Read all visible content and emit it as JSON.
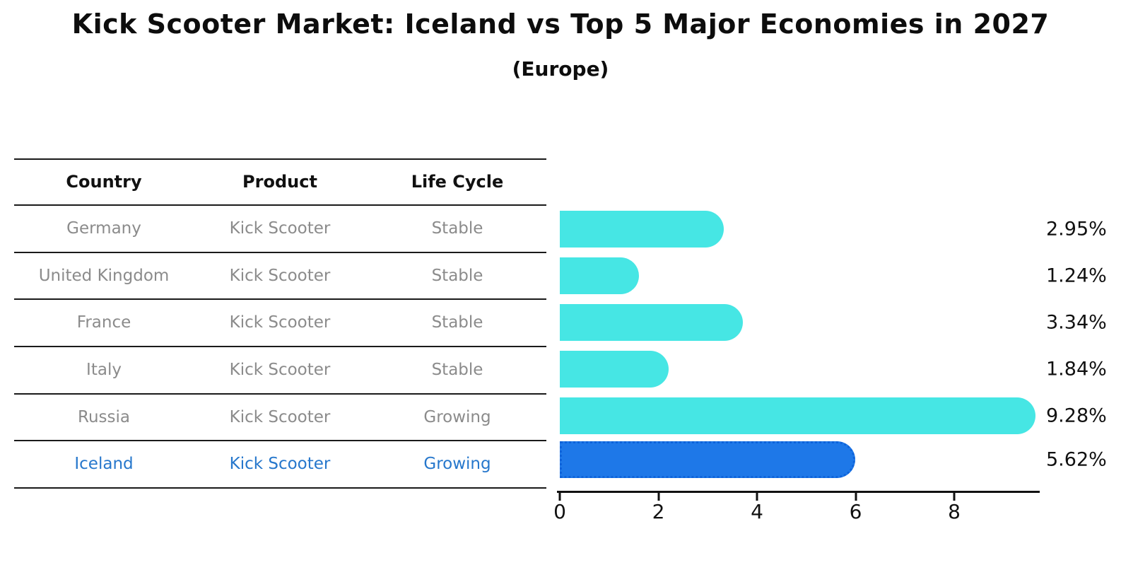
{
  "title": "Kick Scooter Market: Iceland vs Top 5 Major Economies in 2027",
  "subtitle": "(Europe)",
  "table": {
    "columns": [
      "Country",
      "Product",
      "Life Cycle"
    ],
    "rows": [
      {
        "country": "Germany",
        "product": "Kick Scooter",
        "life_cycle": "Stable",
        "highlight": false
      },
      {
        "country": "United Kingdom",
        "product": "Kick Scooter",
        "life_cycle": "Stable",
        "highlight": false
      },
      {
        "country": "France",
        "product": "Kick Scooter",
        "life_cycle": "Stable",
        "highlight": false
      },
      {
        "country": "Italy",
        "product": "Kick Scooter",
        "life_cycle": "Stable",
        "highlight": false
      },
      {
        "country": "Russia",
        "product": "Kick Scooter",
        "life_cycle": "Growing",
        "highlight": false
      },
      {
        "country": "Iceland",
        "product": "Kick Scooter",
        "life_cycle": "Growing",
        "highlight": true
      }
    ]
  },
  "chart_data": {
    "type": "bar",
    "orientation": "horizontal",
    "title": "Kick Scooter Market: Iceland vs Top 5 Major Economies in 2027 (Europe)",
    "categories": [
      "Germany",
      "United Kingdom",
      "France",
      "Italy",
      "Russia",
      "Iceland"
    ],
    "values": [
      2.95,
      1.24,
      3.34,
      1.84,
      9.28,
      5.62
    ],
    "value_labels": [
      "2.95%",
      "1.24%",
      "3.34%",
      "1.84%",
      "9.28%",
      "5.62%"
    ],
    "xlabel": "",
    "ylabel": "",
    "xlim": [
      0,
      9.7
    ],
    "x_ticks": [
      0,
      2,
      4,
      6,
      8
    ],
    "x_tick_labels": [
      "0",
      "2",
      "4",
      "6",
      "8"
    ],
    "grid": false,
    "legend": false,
    "highlight_category": "Iceland",
    "colors": {
      "bar_default": "#46E6E4",
      "bar_highlight": "#1E78E8",
      "bar_highlight_edge": "#0E63DA",
      "highlight_text": "#2677CC",
      "table_text": "#8b8b8b",
      "axis_text": "#111111"
    }
  }
}
